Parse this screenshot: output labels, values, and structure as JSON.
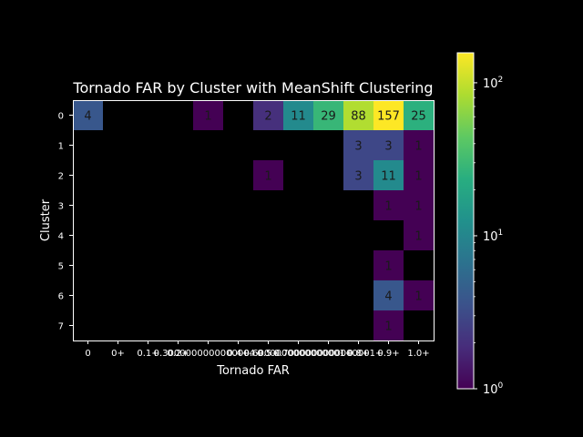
{
  "chart_data": {
    "type": "heatmap",
    "title": "Tornado FAR by Cluster with MeanShift Clustering",
    "xlabel": "Tornado FAR",
    "ylabel": "Cluster",
    "x_categories": [
      "0",
      "0+",
      "0.1+",
      "0.2+",
      "0.3000000000000004+",
      "0.4+",
      "0.5+",
      "0.6000000000000001+",
      "0.7000000000000001+",
      "0.8+",
      "0.9+",
      "1.0+"
    ],
    "y_categories": [
      "0",
      "1",
      "2",
      "3",
      "4",
      "5",
      "6",
      "7"
    ],
    "cells": [
      {
        "row": 0,
        "col": 0,
        "value": 4
      },
      {
        "row": 0,
        "col": 4,
        "value": 1
      },
      {
        "row": 0,
        "col": 6,
        "value": 2
      },
      {
        "row": 0,
        "col": 7,
        "value": 11
      },
      {
        "row": 0,
        "col": 8,
        "value": 29
      },
      {
        "row": 0,
        "col": 9,
        "value": 88
      },
      {
        "row": 0,
        "col": 10,
        "value": 157
      },
      {
        "row": 0,
        "col": 11,
        "value": 25
      },
      {
        "row": 1,
        "col": 9,
        "value": 3
      },
      {
        "row": 1,
        "col": 10,
        "value": 3
      },
      {
        "row": 1,
        "col": 11,
        "value": 1
      },
      {
        "row": 2,
        "col": 6,
        "value": 1
      },
      {
        "row": 2,
        "col": 9,
        "value": 3
      },
      {
        "row": 2,
        "col": 10,
        "value": 11
      },
      {
        "row": 2,
        "col": 11,
        "value": 1
      },
      {
        "row": 3,
        "col": 10,
        "value": 1
      },
      {
        "row": 3,
        "col": 11,
        "value": 1
      },
      {
        "row": 4,
        "col": 11,
        "value": 1
      },
      {
        "row": 5,
        "col": 10,
        "value": 1
      },
      {
        "row": 6,
        "col": 10,
        "value": 4
      },
      {
        "row": 6,
        "col": 11,
        "value": 1
      },
      {
        "row": 7,
        "col": 10,
        "value": 1
      }
    ],
    "colorbar": {
      "scale": "log",
      "range": [
        1,
        157
      ],
      "colormap": "viridis",
      "ticks": [
        {
          "value": 1,
          "base": "10",
          "exp": "0"
        },
        {
          "value": 10,
          "base": "10",
          "exp": "1"
        },
        {
          "value": 100,
          "base": "10",
          "exp": "2"
        }
      ]
    },
    "colors": {
      "background": "#000000",
      "text": "#ffffff",
      "empty_cell": "#000000"
    },
    "grid": false
  }
}
